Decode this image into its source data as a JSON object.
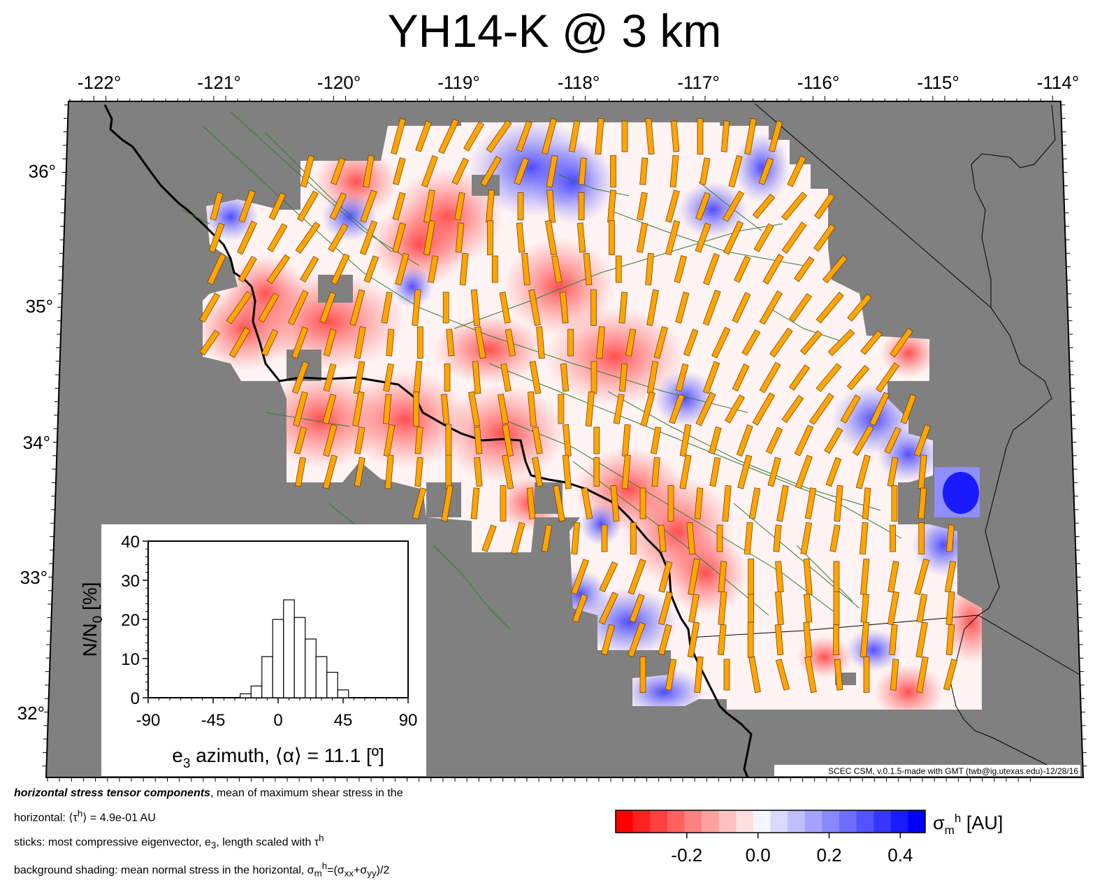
{
  "title": "YH14-K @ 3 km",
  "map": {
    "lon_ticks": [
      "-122°",
      "-121°",
      "-120°",
      "-119°",
      "-118°",
      "-117°",
      "-116°",
      "-115°",
      "-114°"
    ],
    "lat_ticks": [
      "36°",
      "35°",
      "34°",
      "33°",
      "32°"
    ],
    "lon_range": [
      -122,
      -114
    ],
    "lat_range": [
      31.5,
      36.5
    ],
    "background_color": "#808080",
    "positive_color": "#0000ff",
    "negative_color": "#ff0000",
    "stick_color": "#ffa500",
    "fault_color": "#2e7d32",
    "credit": "SCEC CSM, v.0.1.5-made with GMT (twb@ig.utexas.edu)-12/28/16"
  },
  "inset": {
    "ylabel": "N/N",
    "ylabel_sub": "0",
    "ylabel_unit": " [%]",
    "xlabel_e": "e",
    "xlabel_sub": "3",
    "xlabel_rest": " azimuth, ⟨α⟩ = 11.1 [º]",
    "x_ticks": [
      "-90",
      "-45",
      "0",
      "45",
      "90"
    ],
    "y_ticks": [
      "0",
      "10",
      "20",
      "30",
      "40"
    ]
  },
  "chart_data": {
    "type": "bar",
    "title": "",
    "xlabel": "e3 azimuth, ⟨α⟩ = 11.1 [º]",
    "ylabel": "N/N0 [%]",
    "xlim": [
      -90,
      90
    ],
    "ylim": [
      0,
      40
    ],
    "bin_width": 7.5,
    "x": [
      -22.5,
      -15,
      -7.5,
      0,
      7.5,
      15,
      22.5,
      30,
      37.5,
      45
    ],
    "values": [
      1,
      3,
      10.5,
      20,
      25,
      20.5,
      15,
      10.5,
      6.5,
      2
    ]
  },
  "colorbar": {
    "ticks": [
      "-0.2",
      "0.0",
      "0.2",
      "0.4"
    ],
    "tick_values": [
      -0.2,
      0.0,
      0.2,
      0.4
    ],
    "range": [
      -0.4,
      0.47
    ],
    "label_sigma": "σ",
    "label_sub": "m",
    "label_sup": "h",
    "label_unit": " [AU]"
  },
  "caption": {
    "line1_bold": "horizontal stress tensor components",
    "line1_rest": ", mean of maximum shear stress in the",
    "line2": "horizontal: ⟨τ",
    "line2_sup": "h",
    "line2_rest": "⟩ = 4.9e-01 AU",
    "line3": "sticks: most compressive eigenvector, e",
    "line3_sub": "3",
    "line3_rest": ", length scaled with τ",
    "line3_sup": "h",
    "line4": "background shading: mean normal stress in the horizontal, σ",
    "line4_sub": "m",
    "line4_sup": "h",
    "line4_rest": "=(σ",
    "line4_sub2": "xx",
    "line4_mid": "+σ",
    "line4_sub3": "yy",
    "line4_end": ")/2"
  }
}
